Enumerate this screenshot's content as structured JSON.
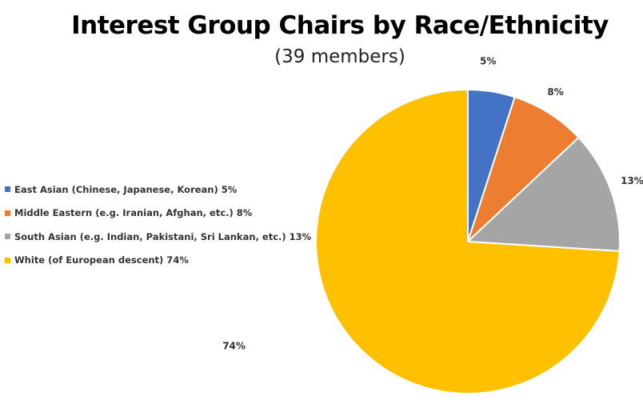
{
  "chart_data": {
    "type": "pie",
    "title": "Interest Group Chairs by Race/Ethnicity",
    "subtitle": "(39 members)",
    "legend_position": "left",
    "slices": [
      {
        "name": "East Asian (Chinese, Japanese, Korean) 5%",
        "value": 5,
        "label": "5%",
        "color": "#4472C4"
      },
      {
        "name": "Middle Eastern (e.g. Iranian, Afghan, etc.) 8%",
        "value": 8,
        "label": "8%",
        "color": "#ED7D31"
      },
      {
        "name": "South Asian (e.g. Indian, Pakistani, Sri Lankan, etc.) 13%",
        "value": 13,
        "label": "13%",
        "color": "#A5A5A5"
      },
      {
        "name": "White (of European descent) 74%",
        "value": 74,
        "label": "74%",
        "color": "#FFC000"
      }
    ]
  }
}
